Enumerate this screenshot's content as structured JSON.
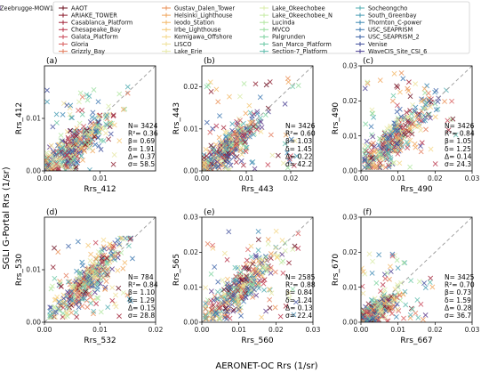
{
  "figure": {
    "ylabel_global": "SGLI G-Portal Rrs (1/sr)",
    "xlabel_global": "AERONET-OC Rrs (1/sr)"
  },
  "legend": {
    "entries": [
      {
        "name": "AAOT",
        "color": "#6a0d1e"
      },
      {
        "name": "ARIAKE_TOWER",
        "color": "#8b1a2b"
      },
      {
        "name": "Casablanca_Platform",
        "color": "#a3243a"
      },
      {
        "name": "Chesapeake_Bay",
        "color": "#b8334a"
      },
      {
        "name": "Galata_Platform",
        "color": "#c9495a"
      },
      {
        "name": "Gloria",
        "color": "#d85f5f"
      },
      {
        "name": "Grizzly_Bay",
        "color": "#e37a5a"
      },
      {
        "name": "Gustav_Dalen_Tower",
        "color": "#ea8f55"
      },
      {
        "name": "Helsinki_Lighthouse",
        "color": "#f0a45a"
      },
      {
        "name": "Ieodo_Station",
        "color": "#f3b766"
      },
      {
        "name": "Irbe_Lighthouse",
        "color": "#f5c875"
      },
      {
        "name": "Kemigawa_Offshore",
        "color": "#f4d787"
      },
      {
        "name": "LISCO",
        "color": "#efe19a"
      },
      {
        "name": "Lake_Erie",
        "color": "#e6e8a6"
      },
      {
        "name": "Lake_Okeechobee",
        "color": "#d8eca8"
      },
      {
        "name": "Lake_Okeechobee_N",
        "color": "#c5eba3"
      },
      {
        "name": "Lucinda",
        "color": "#b0e6a0"
      },
      {
        "name": "MVCO",
        "color": "#97dd9e"
      },
      {
        "name": "Palgrunden",
        "color": "#7fd3a0"
      },
      {
        "name": "San_Marco_Platform",
        "color": "#6cc8a6"
      },
      {
        "name": "Section-7_Platform",
        "color": "#5dbbab"
      },
      {
        "name": "Socheongcho",
        "color": "#50acb0"
      },
      {
        "name": "South_Greenbay",
        "color": "#459bb3"
      },
      {
        "name": "Thornton_C-power",
        "color": "#3d89b4"
      },
      {
        "name": "USC_SEAPRISM",
        "color": "#3a76b0"
      },
      {
        "name": "USC_SEAPRISM_2",
        "color": "#3d63a8"
      },
      {
        "name": "Venise",
        "color": "#43519e"
      },
      {
        "name": "WaveCIS_Site_CSI_6",
        "color": "#4b4194"
      },
      {
        "name": "Zeebrugge-MOW1",
        "color": "#5e3a8c"
      }
    ]
  },
  "chart_data": [
    {
      "panel": "(a)",
      "type": "scatter",
      "xlabel": "Rrs_412",
      "ylabel": "Rrs_412",
      "xlim": [
        0,
        0.02
      ],
      "ylim": [
        0,
        0.02
      ],
      "xticks": [
        "0.00",
        "0.01"
      ],
      "yticks": [
        "0.00",
        "0.01"
      ],
      "stats": [
        "N= 3424",
        "R²= 0.36",
        "β= 0.69",
        "δ= 1.91",
        "Δ= 0.37",
        "σ= 58.5"
      ],
      "one_to_one_line": true,
      "points_cloud": {
        "x_range": [
          0.0003,
          0.015
        ],
        "y_range": [
          0.0001,
          0.016
        ],
        "center": [
          0.005,
          0.004
        ],
        "spread": [
          0.0032,
          0.0032
        ]
      }
    },
    {
      "panel": "(b)",
      "type": "scatter",
      "xlabel": "Rrs_443",
      "ylabel": "Rrs_443",
      "xlim": [
        0,
        0.025
      ],
      "ylim": [
        0,
        0.025
      ],
      "xticks": [
        "0.00",
        "0.01",
        "0.02"
      ],
      "yticks": [
        "0.00",
        "0.01",
        "0.02"
      ],
      "stats": [
        "N= 3426",
        "R²= 0.60",
        "β= 1.03",
        "δ= 1.45",
        "Δ= 0.22",
        "σ= 42.2"
      ],
      "one_to_one_line": true,
      "points_cloud": {
        "x_range": [
          0.0005,
          0.022
        ],
        "y_range": [
          0.0002,
          0.022
        ],
        "center": [
          0.006,
          0.0055
        ],
        "spread": [
          0.0035,
          0.0035
        ]
      }
    },
    {
      "panel": "(c)",
      "type": "scatter",
      "xlabel": "Rrs_490",
      "ylabel": "Rrs_490",
      "xlim": [
        0,
        0.03
      ],
      "ylim": [
        0,
        0.03
      ],
      "xticks": [
        "0.00",
        "0.01",
        "0.02",
        "0.03"
      ],
      "yticks": [
        "0.00",
        "0.01",
        "0.02",
        "0.03"
      ],
      "stats": [
        "N= 3426",
        "R²= 0.84",
        "β= 1.05",
        "δ= 1.25",
        "Δ= 0.14",
        "σ= 24.3"
      ],
      "one_to_one_line": true,
      "points_cloud": {
        "x_range": [
          0.001,
          0.026
        ],
        "y_range": [
          0.001,
          0.028
        ],
        "center": [
          0.009,
          0.009
        ],
        "spread": [
          0.005,
          0.005
        ]
      }
    },
    {
      "panel": "(d)",
      "type": "scatter",
      "xlabel": "Rrs_532",
      "ylabel": "Rrs_530",
      "xlim": [
        0,
        0.02
      ],
      "ylim": [
        0,
        0.02
      ],
      "xticks": [
        "0.00",
        "0.01",
        "0.02"
      ],
      "yticks": [
        "0.00",
        "0.01"
      ],
      "stats": [
        "N= 784",
        "R²= 0.84",
        "β= 1.10",
        "δ= 1.29",
        "Δ= 0.15",
        "σ= 28.8"
      ],
      "one_to_one_line": true,
      "points_cloud": {
        "x_range": [
          0.001,
          0.016
        ],
        "y_range": [
          0.001,
          0.016
        ],
        "center": [
          0.0075,
          0.0075
        ],
        "spread": [
          0.0032,
          0.0032
        ]
      }
    },
    {
      "panel": "(e)",
      "type": "scatter",
      "xlabel": "Rrs_560",
      "ylabel": "Rrs_565",
      "xlim": [
        0,
        0.03
      ],
      "ylim": [
        0,
        0.03
      ],
      "xticks": [
        "0.00",
        "0.01",
        "0.02",
        "0.03"
      ],
      "yticks": [
        "0.00",
        "0.01",
        "0.02",
        "0.03"
      ],
      "stats": [
        "N= 2585",
        "R²= 0.88",
        "β= 0.84",
        "δ= 1.24",
        "Δ= 0.13",
        "σ= 22.4"
      ],
      "one_to_one_line": true,
      "points_cloud": {
        "x_range": [
          0.001,
          0.026
        ],
        "y_range": [
          0.001,
          0.026
        ],
        "center": [
          0.01,
          0.009
        ],
        "spread": [
          0.005,
          0.005
        ]
      }
    },
    {
      "panel": "(f)",
      "type": "scatter",
      "xlabel": "Rrs_667",
      "ylabel": "Rrs_670",
      "xlim": [
        0,
        0.03
      ],
      "ylim": [
        0,
        0.03
      ],
      "xticks": [
        "0.00",
        "0.01",
        "0.02",
        "0.03"
      ],
      "yticks": [
        "0.00",
        "0.01",
        "0.02",
        "0.03"
      ],
      "stats": [
        "N= 3425",
        "R²= 0.70",
        "β= 0.73",
        "δ= 1.59",
        "Δ= 0.28",
        "σ= 36.7"
      ],
      "one_to_one_line": true,
      "points_cloud": {
        "x_range": [
          0.0002,
          0.02
        ],
        "y_range": [
          0.0002,
          0.02
        ],
        "center": [
          0.004,
          0.003
        ],
        "spread": [
          0.003,
          0.003
        ]
      }
    }
  ]
}
